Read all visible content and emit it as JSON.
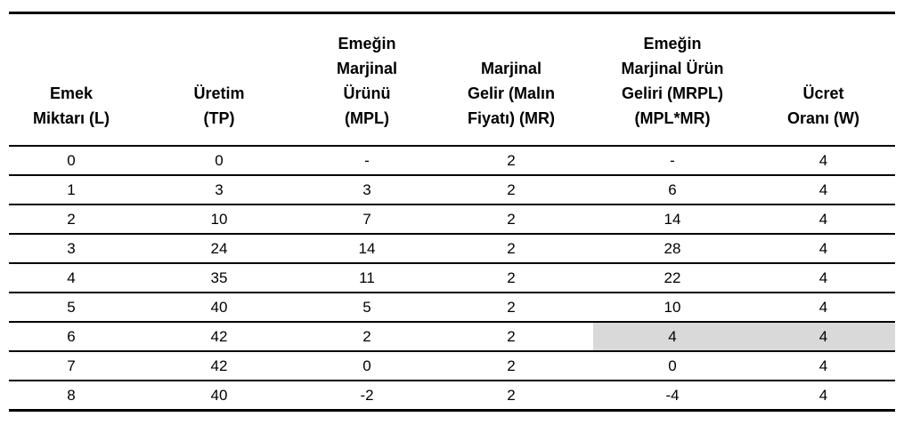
{
  "table": {
    "columns": [
      {
        "key": "emek",
        "label_lines": [
          "Emek",
          "Miktarı (L)"
        ]
      },
      {
        "key": "uretim",
        "label_lines": [
          "Üretim",
          "(TP)"
        ]
      },
      {
        "key": "mpl",
        "label_lines": [
          "Emeğin",
          "Marjinal",
          "Ürünü",
          "(MPL)"
        ]
      },
      {
        "key": "mr",
        "label_lines": [
          "Marjinal",
          "Gelir (Malın",
          "Fiyatı) (MR)"
        ]
      },
      {
        "key": "mrpl",
        "label_lines": [
          "Emeğin",
          "Marjinal Ürün",
          "Geliri (MRPL)",
          "(MPL*MR)"
        ]
      },
      {
        "key": "w",
        "label_lines": [
          "Ücret",
          "Oranı (W)"
        ]
      }
    ],
    "rows": [
      [
        "0",
        "0",
        "-",
        "2",
        "-",
        "4"
      ],
      [
        "1",
        "3",
        "3",
        "2",
        "6",
        "4"
      ],
      [
        "2",
        "10",
        "7",
        "2",
        "14",
        "4"
      ],
      [
        "3",
        "24",
        "14",
        "2",
        "28",
        "4"
      ],
      [
        "4",
        "35",
        "11",
        "2",
        "22",
        "4"
      ],
      [
        "5",
        "40",
        "5",
        "2",
        "10",
        "4"
      ],
      [
        "6",
        "42",
        "2",
        "2",
        "4",
        "4"
      ],
      [
        "7",
        "42",
        "0",
        "2",
        "0",
        "4"
      ],
      [
        "8",
        "40",
        "-2",
        "2",
        "-4",
        "4"
      ]
    ],
    "highlight": {
      "row_index": 6,
      "column_keys": [
        "mrpl",
        "w"
      ],
      "color": "#d9d9d9"
    }
  },
  "colors": {
    "text": "#000000",
    "border": "#000000",
    "background": "#ffffff",
    "highlight": "#d9d9d9"
  }
}
